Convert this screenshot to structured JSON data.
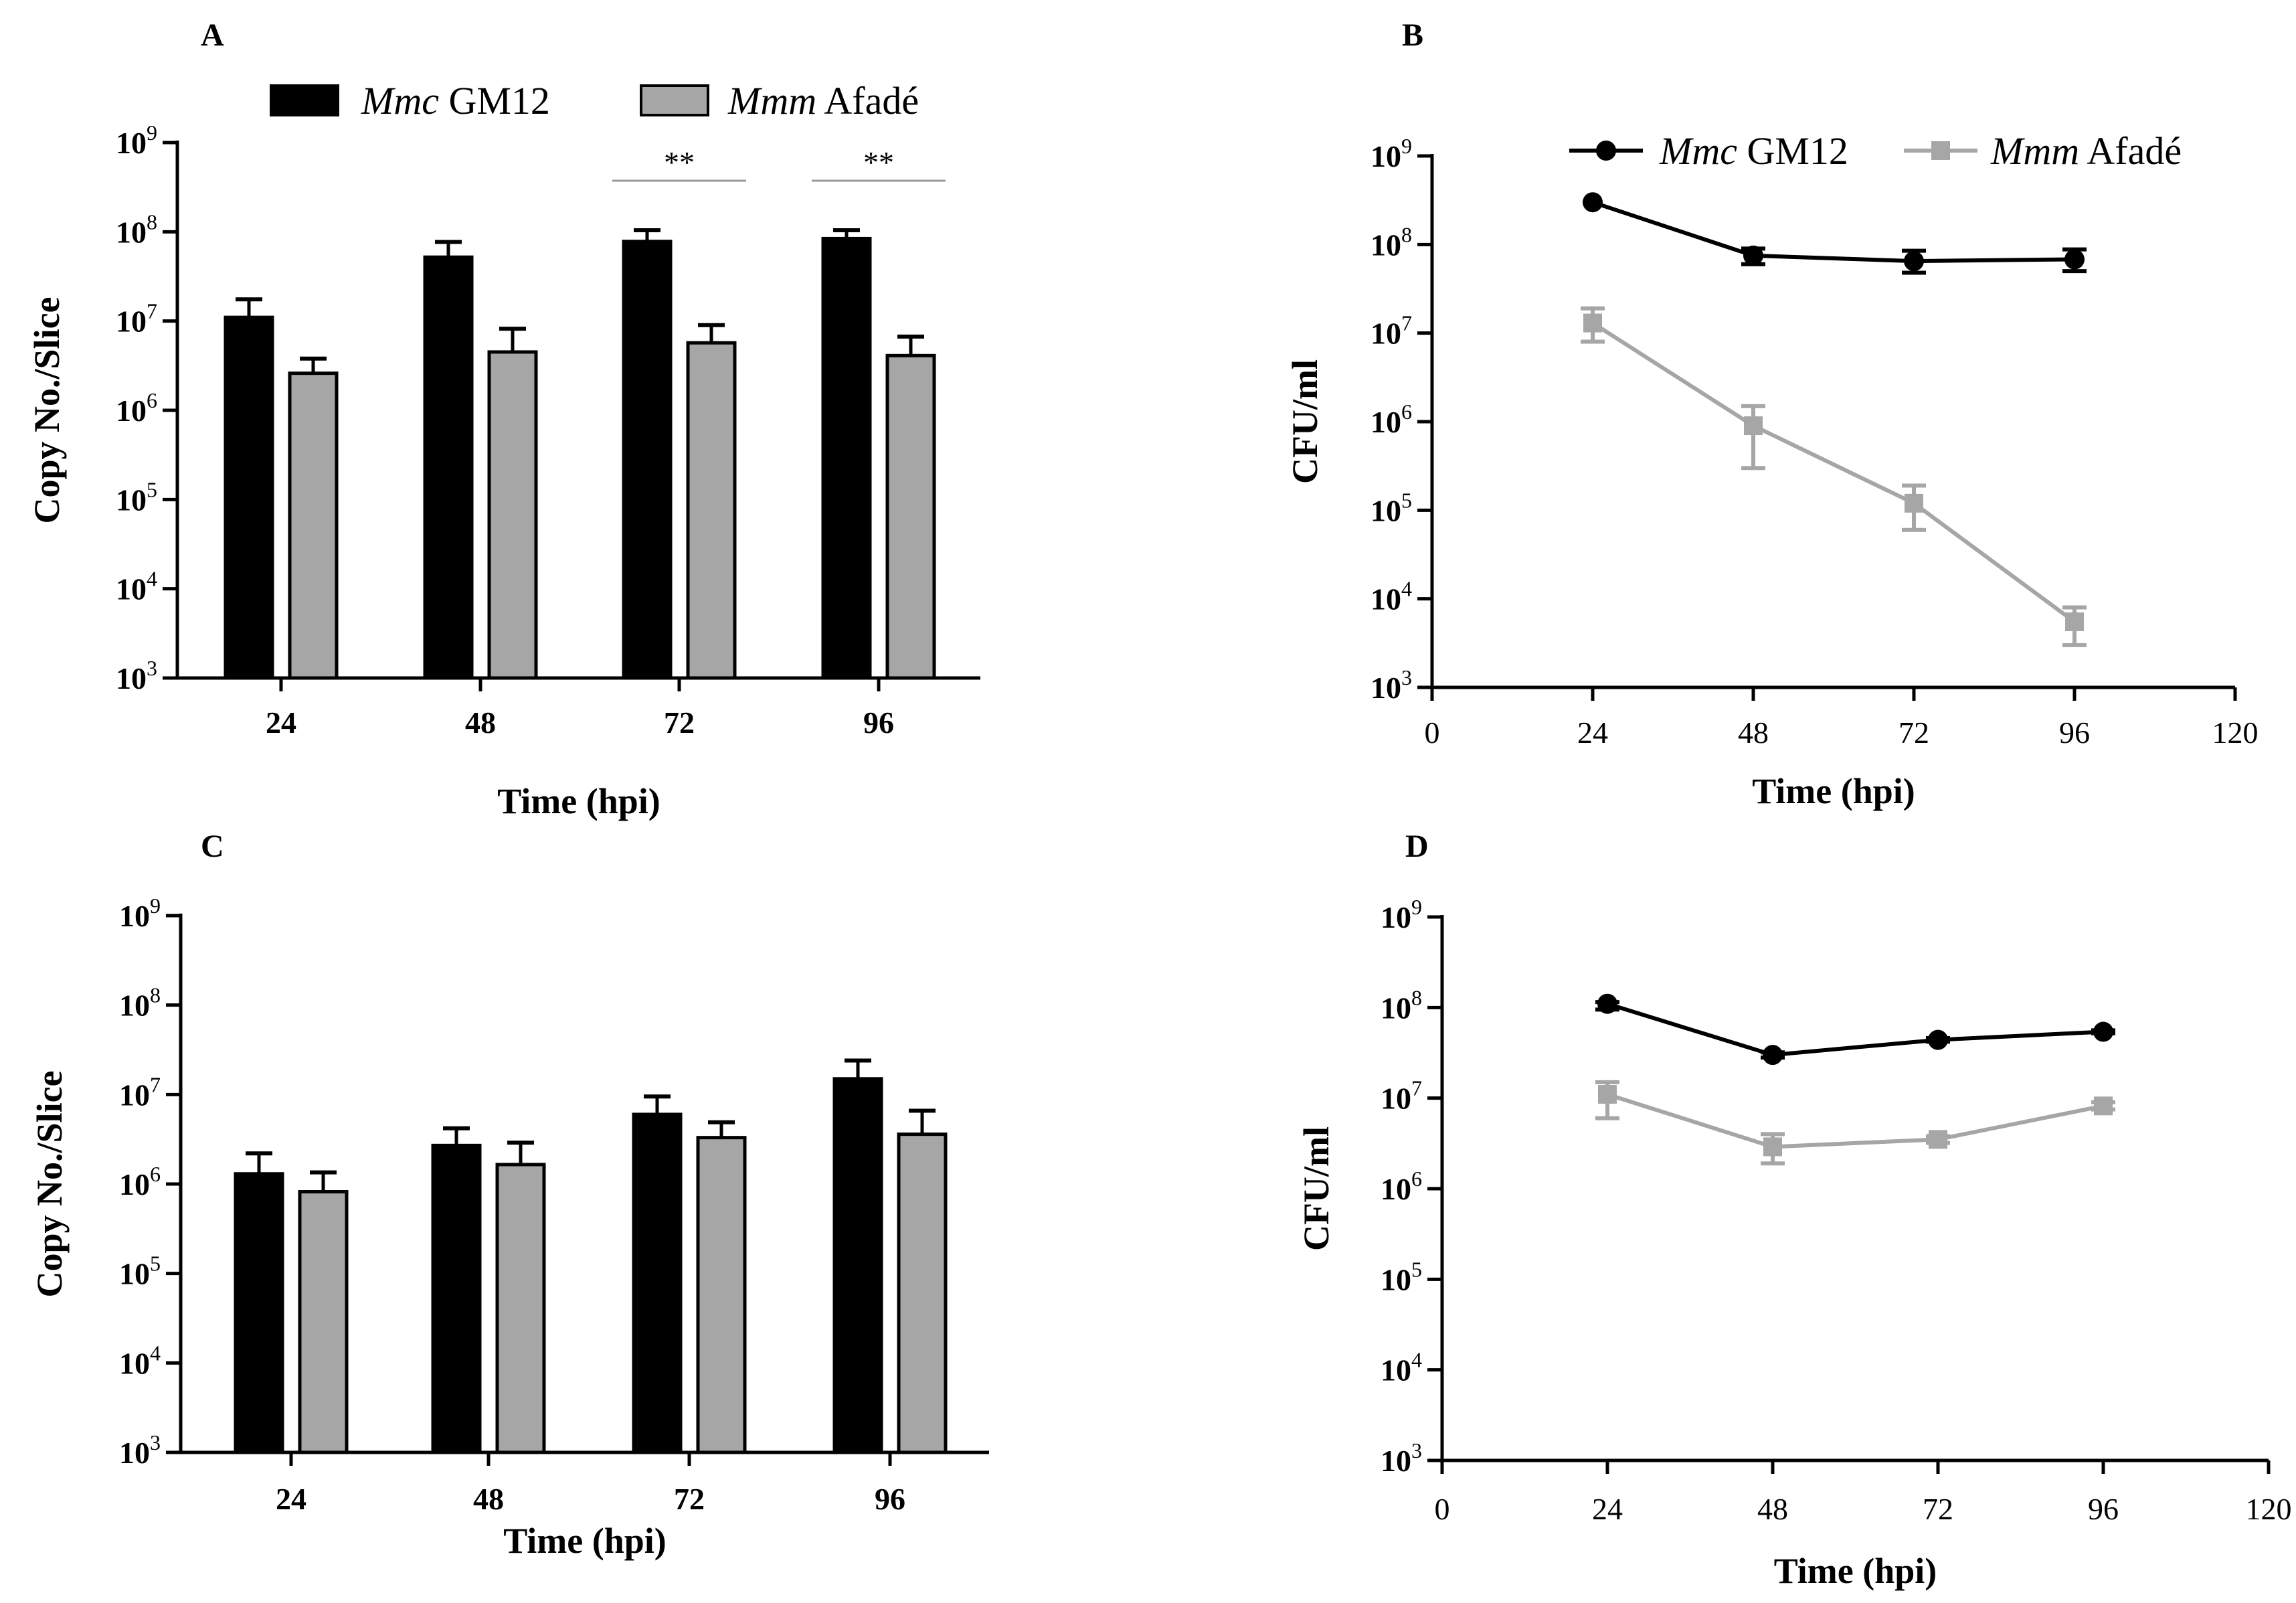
{
  "legend": {
    "mmc": {
      "italic": "Mmc",
      "rest": " GM12"
    },
    "mmm": {
      "italic": "Mmm",
      "rest": " Afadé"
    }
  },
  "colors": {
    "mmc": "#000000",
    "mmm": "#a6a6a6"
  },
  "chart_data": [
    {
      "panel": "A",
      "type": "bar",
      "ylabel": "Copy No./Slice",
      "xlabel": "Time (hpi)",
      "yscale": "log",
      "ylim": [
        1000,
        1000000000
      ],
      "categories": [
        "24",
        "48",
        "72",
        "96"
      ],
      "series": [
        {
          "name": "Mmc GM12",
          "values": [
            11000000,
            52000000,
            78000000,
            84000000
          ],
          "errors": [
            17500000,
            77000000,
            104000000,
            104000000
          ]
        },
        {
          "name": "Mmm Afadé",
          "values": [
            2600000,
            4500000,
            5700000,
            4100000
          ],
          "errors": [
            3800000,
            8200000,
            9000000,
            6700000
          ]
        }
      ],
      "significance": [
        {
          "category": "72",
          "label": "**"
        },
        {
          "category": "96",
          "label": "**"
        }
      ]
    },
    {
      "panel": "B",
      "type": "line",
      "ylabel": "CFU/ml",
      "xlabel": "Time (hpi)",
      "yscale": "log",
      "ylim": [
        1000,
        1000000000
      ],
      "xlim": [
        0,
        120
      ],
      "xticks": [
        "0",
        "24",
        "48",
        "72",
        "96",
        "120"
      ],
      "x": [
        24,
        48,
        72,
        96
      ],
      "series": [
        {
          "name": "Mmc GM12",
          "values": [
            300000000,
            75000000,
            65000000,
            68000000
          ],
          "err_low": [
            300000000,
            60000000,
            48000000,
            50000000
          ],
          "err_high": [
            300000000,
            90000000,
            85000000,
            88000000
          ]
        },
        {
          "name": "Mmm Afadé",
          "values": [
            13000000,
            900000,
            120000,
            5500
          ],
          "err_low": [
            8000000,
            300000,
            60000,
            3000
          ],
          "err_high": [
            19000000,
            1500000,
            190000,
            8000
          ]
        }
      ]
    },
    {
      "panel": "C",
      "type": "bar",
      "ylabel": "Copy No./Slice",
      "xlabel": "Time (hpi)",
      "yscale": "log",
      "ylim": [
        1000,
        1000000000
      ],
      "categories": [
        "24",
        "48",
        "72",
        "96"
      ],
      "series": [
        {
          "name": "Mmc GM12",
          "values": [
            1300000,
            2700000,
            6000000,
            15000000
          ],
          "errors": [
            2200000,
            4200000,
            9500000,
            24000000
          ]
        },
        {
          "name": "Mmm Afadé",
          "values": [
            820000,
            1650000,
            3300000,
            3600000
          ],
          "errors": [
            1350000,
            2900000,
            4900000,
            6600000
          ]
        }
      ]
    },
    {
      "panel": "D",
      "type": "line",
      "ylabel": "CFU/ml",
      "xlabel": "Time (hpi)",
      "yscale": "log",
      "ylim": [
        1000,
        1000000000
      ],
      "xlim": [
        0,
        120
      ],
      "xticks": [
        "0",
        "24",
        "48",
        "72",
        "96",
        "120"
      ],
      "x": [
        24,
        48,
        72,
        96
      ],
      "series": [
        {
          "name": "Mmc GM12",
          "values": [
            110000000,
            30000000,
            44000000,
            54000000
          ],
          "err_low": [
            95000000,
            28000000,
            42000000,
            52000000
          ],
          "err_high": [
            115000000,
            32000000,
            46000000,
            56000000
          ]
        },
        {
          "name": "Mmm Afadé",
          "values": [
            11000000,
            2900000,
            3500000,
            8200000
          ],
          "err_low": [
            6000000,
            1900000,
            3200000,
            7500000
          ],
          "err_high": [
            15000000,
            4000000,
            3800000,
            9000000
          ]
        }
      ]
    }
  ]
}
